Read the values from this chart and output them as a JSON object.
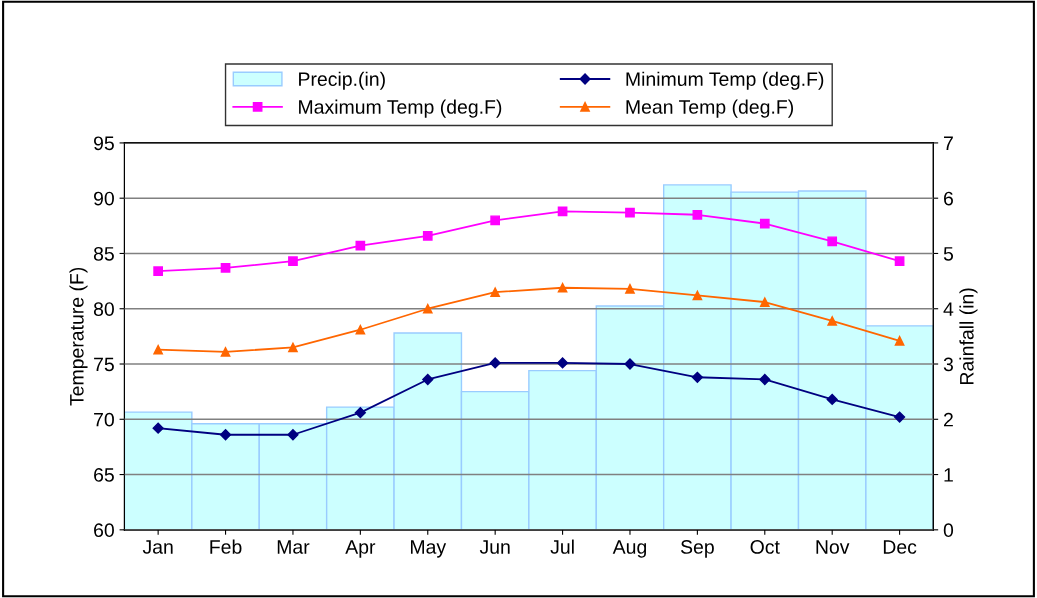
{
  "chart_data": {
    "type": "bar",
    "ylabel": "Temperature (F)",
    "y2label": "Rainfall (in)",
    "categories": [
      "Jan",
      "Feb",
      "Mar",
      "Apr",
      "May",
      "Jun",
      "Jul",
      "Aug",
      "Sep",
      "Oct",
      "Nov",
      "Dec"
    ],
    "series": [
      {
        "name": "Precip.(in)",
        "axis": "y2",
        "color": "#ccffff",
        "values": [
          2.13,
          1.92,
          1.92,
          2.22,
          3.56,
          2.5,
          2.88,
          4.05,
          6.24,
          6.11,
          6.13,
          3.69
        ]
      },
      {
        "name": "Minimum Temp (deg.F)",
        "type": "line",
        "color": "#000080",
        "marker": "diamond",
        "values": [
          69.2,
          68.6,
          68.6,
          70.6,
          73.6,
          75.1,
          75.1,
          75.0,
          73.8,
          73.6,
          71.8,
          70.2
        ]
      },
      {
        "name": "Maximum Temp (deg.F)",
        "type": "line",
        "color": "#ff00ff",
        "marker": "square",
        "values": [
          83.4,
          83.7,
          84.3,
          85.7,
          86.6,
          88.0,
          88.8,
          88.7,
          88.5,
          87.7,
          86.1,
          84.3
        ]
      },
      {
        "name": "Mean Temp (deg.F)",
        "type": "line",
        "color": "#ff6600",
        "marker": "triangle",
        "values": [
          76.3,
          76.1,
          76.5,
          78.1,
          80.0,
          81.5,
          81.9,
          81.8,
          81.2,
          80.6,
          78.9,
          77.1
        ]
      }
    ],
    "ylim": [
      60,
      95
    ],
    "yticks": [
      60,
      65,
      70,
      75,
      80,
      85,
      90,
      95
    ],
    "y2lim": [
      0,
      7
    ],
    "y2ticks": [
      0,
      1,
      2,
      3,
      4,
      5,
      6,
      7
    ],
    "grid": "y",
    "legend": "top"
  }
}
